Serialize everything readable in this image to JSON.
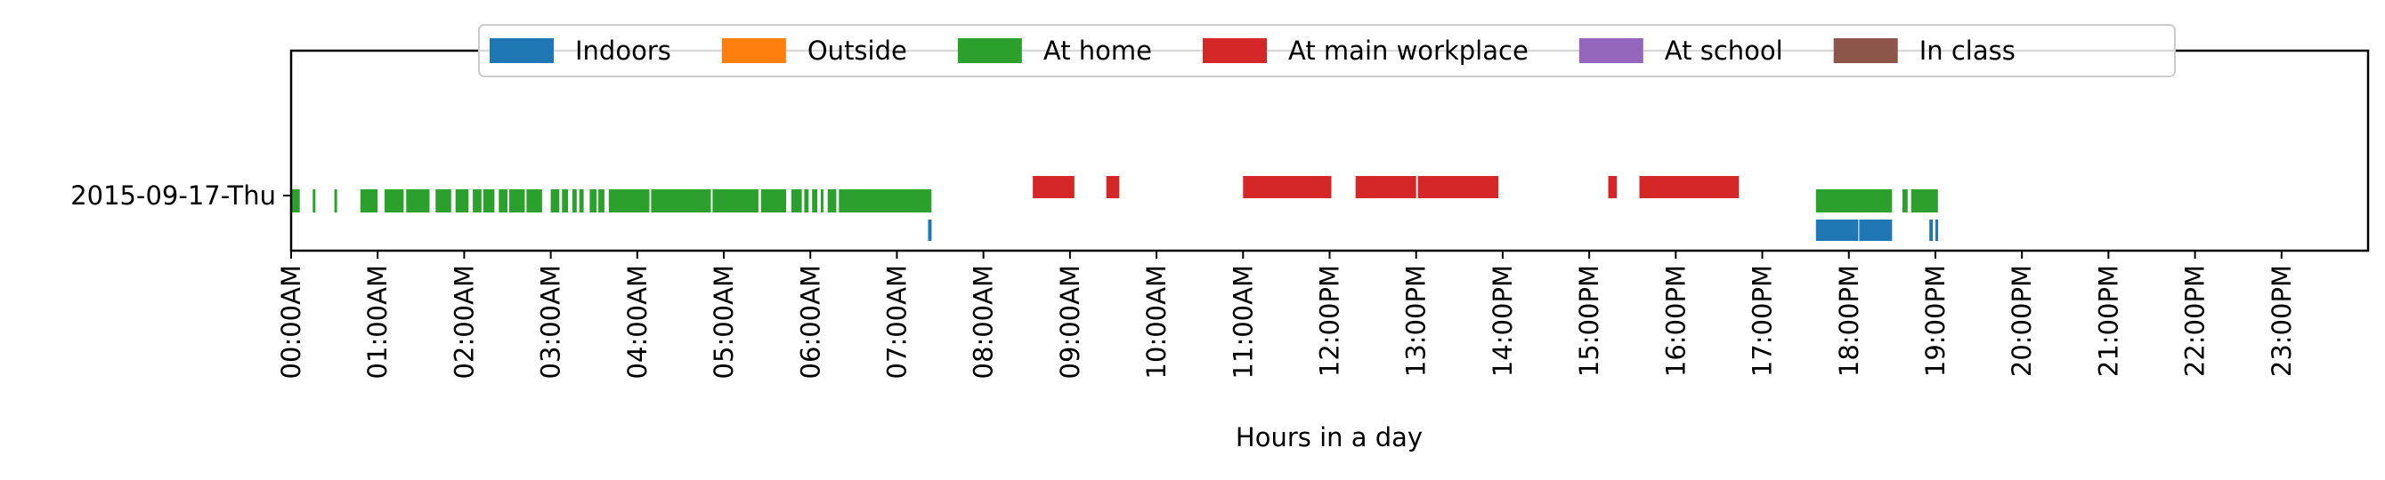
{
  "chart_data": {
    "type": "timeline",
    "xlabel": "Hours in a day",
    "ylabel": "",
    "xlim": [
      0,
      24
    ],
    "row_label": "2015-09-17-Thu",
    "x_tick_labels": [
      "00:00AM",
      "01:00AM",
      "02:00AM",
      "03:00AM",
      "04:00AM",
      "05:00AM",
      "06:00AM",
      "07:00AM",
      "08:00AM",
      "09:00AM",
      "10:00AM",
      "11:00AM",
      "12:00PM",
      "13:00PM",
      "14:00PM",
      "15:00PM",
      "16:00PM",
      "17:00PM",
      "18:00PM",
      "19:00PM",
      "20:00PM",
      "21:00PM",
      "22:00PM",
      "23:00PM"
    ],
    "legend_position": "top-center",
    "grid": false,
    "series": [
      {
        "name": "Indoors",
        "color": "#1f77b4",
        "intervals": [
          [
            7.36,
            7.4
          ],
          [
            17.62,
            18.11
          ],
          [
            18.12,
            18.5
          ],
          [
            18.93,
            18.97
          ],
          [
            19.0,
            19.03
          ]
        ]
      },
      {
        "name": "Outside",
        "color": "#ff7f0e",
        "intervals": []
      },
      {
        "name": "At home",
        "color": "#2ca02c",
        "intervals": [
          [
            0.0,
            0.1
          ],
          [
            0.25,
            0.28
          ],
          [
            0.5,
            0.53
          ],
          [
            0.8,
            1.0
          ],
          [
            1.08,
            1.3
          ],
          [
            1.33,
            1.6
          ],
          [
            1.67,
            1.85
          ],
          [
            1.9,
            2.05
          ],
          [
            2.1,
            2.2
          ],
          [
            2.22,
            2.35
          ],
          [
            2.4,
            2.5
          ],
          [
            2.52,
            2.7
          ],
          [
            2.72,
            2.9
          ],
          [
            3.0,
            3.1
          ],
          [
            3.13,
            3.2
          ],
          [
            3.25,
            3.3
          ],
          [
            3.33,
            3.38
          ],
          [
            3.45,
            3.53
          ],
          [
            3.55,
            3.62
          ],
          [
            3.67,
            4.14
          ],
          [
            4.16,
            4.85
          ],
          [
            4.87,
            5.4
          ],
          [
            5.43,
            5.72
          ],
          [
            5.78,
            5.9
          ],
          [
            5.93,
            5.98
          ],
          [
            6.02,
            6.08
          ],
          [
            6.12,
            6.15
          ],
          [
            6.2,
            6.3
          ],
          [
            6.33,
            7.4
          ],
          [
            17.62,
            18.5
          ],
          [
            18.62,
            18.68
          ],
          [
            18.72,
            19.03
          ]
        ]
      },
      {
        "name": "At main workplace",
        "color": "#d62728",
        "intervals": [
          [
            8.57,
            9.05
          ],
          [
            9.42,
            9.57
          ],
          [
            11.0,
            12.02
          ],
          [
            12.3,
            13.0
          ],
          [
            13.02,
            13.95
          ],
          [
            15.22,
            15.32
          ],
          [
            15.58,
            16.73
          ]
        ]
      },
      {
        "name": "At school",
        "color": "#9467bd",
        "intervals": []
      },
      {
        "name": "In class",
        "color": "#8c564b",
        "intervals": []
      }
    ]
  }
}
